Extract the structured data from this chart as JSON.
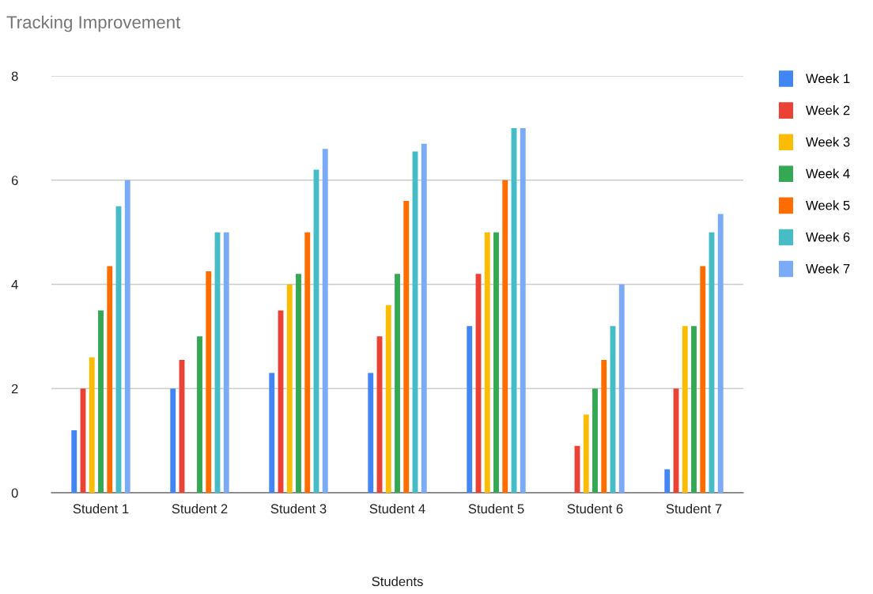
{
  "chart_data": {
    "type": "bar",
    "title": "Tracking Improvement",
    "xlabel": "Students",
    "categories": [
      "Student 1",
      "Student 2",
      "Student 3",
      "Student 4",
      "Student 5",
      "Student 6",
      "Student 7"
    ],
    "series": [
      {
        "name": "Week 1",
        "color": "#4285f4",
        "values": [
          1.2,
          2,
          2.3,
          2.3,
          3.2,
          null,
          0.45
        ]
      },
      {
        "name": "Week 2",
        "color": "#ea4335",
        "values": [
          2,
          2.55,
          3.5,
          3,
          4.2,
          0.9,
          2
        ]
      },
      {
        "name": "Week 3",
        "color": "#fbbc04",
        "values": [
          2.6,
          null,
          4,
          3.6,
          5,
          1.5,
          3.2
        ]
      },
      {
        "name": "Week 4",
        "color": "#34a853",
        "values": [
          3.5,
          3,
          4.2,
          4.2,
          5,
          2,
          3.2
        ]
      },
      {
        "name": "Week 5",
        "color": "#ff6d01",
        "values": [
          4.35,
          4.25,
          5,
          5.6,
          6,
          2.55,
          4.35
        ]
      },
      {
        "name": "Week 6",
        "color": "#46bdc6",
        "values": [
          5.5,
          5,
          6.2,
          6.55,
          7,
          3.2,
          5
        ]
      },
      {
        "name": "Week 7",
        "color": "#7baaf7",
        "values": [
          6,
          5,
          6.6,
          6.7,
          7,
          4,
          5.35
        ]
      }
    ],
    "ylim": [
      0,
      8
    ],
    "yticks": [
      0,
      2,
      4,
      6,
      8
    ],
    "grid": "y",
    "legend": "right"
  }
}
